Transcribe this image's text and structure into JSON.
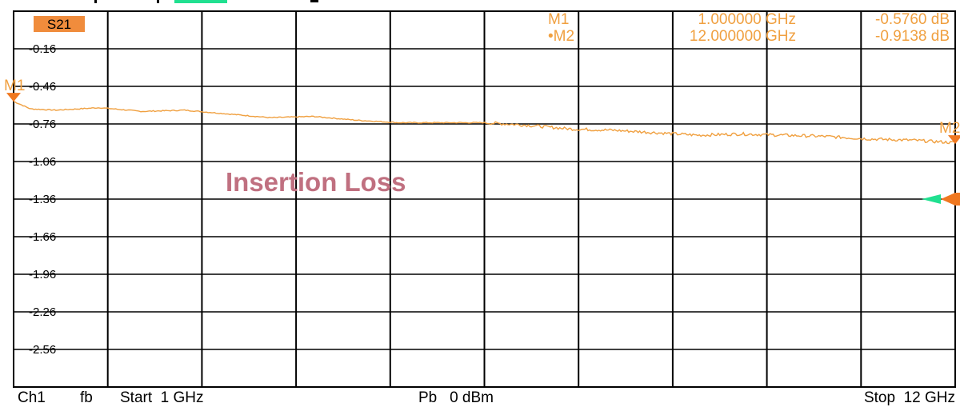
{
  "colors": {
    "trace": "#F0A040",
    "marker": "#F07820",
    "badge": "#F08C3C",
    "annotation": "#C07080",
    "reference": "#20E090",
    "grid": "#000000"
  },
  "footer": {
    "channel": "Ch1",
    "format": "fb",
    "start": "Start  1 GHz",
    "power": "Pb   0 dBm",
    "stop": "Stop  12 GHz"
  },
  "markers": [
    {
      "label": "M1",
      "frequency": "1.000000 GHz",
      "value": "-0.5760 dB"
    },
    {
      "label": "•M2",
      "frequency": "12.000000 GHz",
      "value": "-0.9138 dB"
    }
  ],
  "chart_data": {
    "type": "line",
    "trace_label": "S21",
    "annotation": "Insertion Loss",
    "x_unit": "GHz",
    "xlim": [
      1,
      12
    ],
    "ylim": [
      -2.86,
      0.14
    ],
    "yticks": [
      -0.16,
      -0.46,
      -0.76,
      -1.06,
      -1.36,
      -1.66,
      -1.96,
      -2.26,
      -2.56
    ],
    "ytick_labels": [
      "-0.16",
      "-0.46",
      "-0.76",
      "-1.06",
      "-1.36",
      "-1.66",
      "-1.96",
      "-2.26",
      "-2.56"
    ],
    "x_divisions": 10,
    "grid": true,
    "reference_level": -1.36,
    "series": [
      {
        "x": [
          1.0,
          1.2,
          1.5,
          2.0,
          2.5,
          3.0,
          3.5,
          4.0,
          4.5,
          5.0,
          5.5,
          6.0,
          6.5,
          7.0,
          7.5,
          8.0,
          8.5,
          9.0,
          9.5,
          10.0,
          10.5,
          11.0,
          11.5,
          12.0
        ],
        "y": [
          -0.58,
          -0.64,
          -0.65,
          -0.63,
          -0.66,
          -0.65,
          -0.68,
          -0.71,
          -0.7,
          -0.73,
          -0.75,
          -0.75,
          -0.75,
          -0.77,
          -0.8,
          -0.81,
          -0.83,
          -0.85,
          -0.84,
          -0.85,
          -0.86,
          -0.88,
          -0.89,
          -0.91
        ]
      }
    ],
    "chart_markers": [
      {
        "name": "M1",
        "x": 1.0,
        "y": -0.576
      },
      {
        "name": "M2",
        "x": 12.0,
        "y": -0.9138
      }
    ]
  }
}
